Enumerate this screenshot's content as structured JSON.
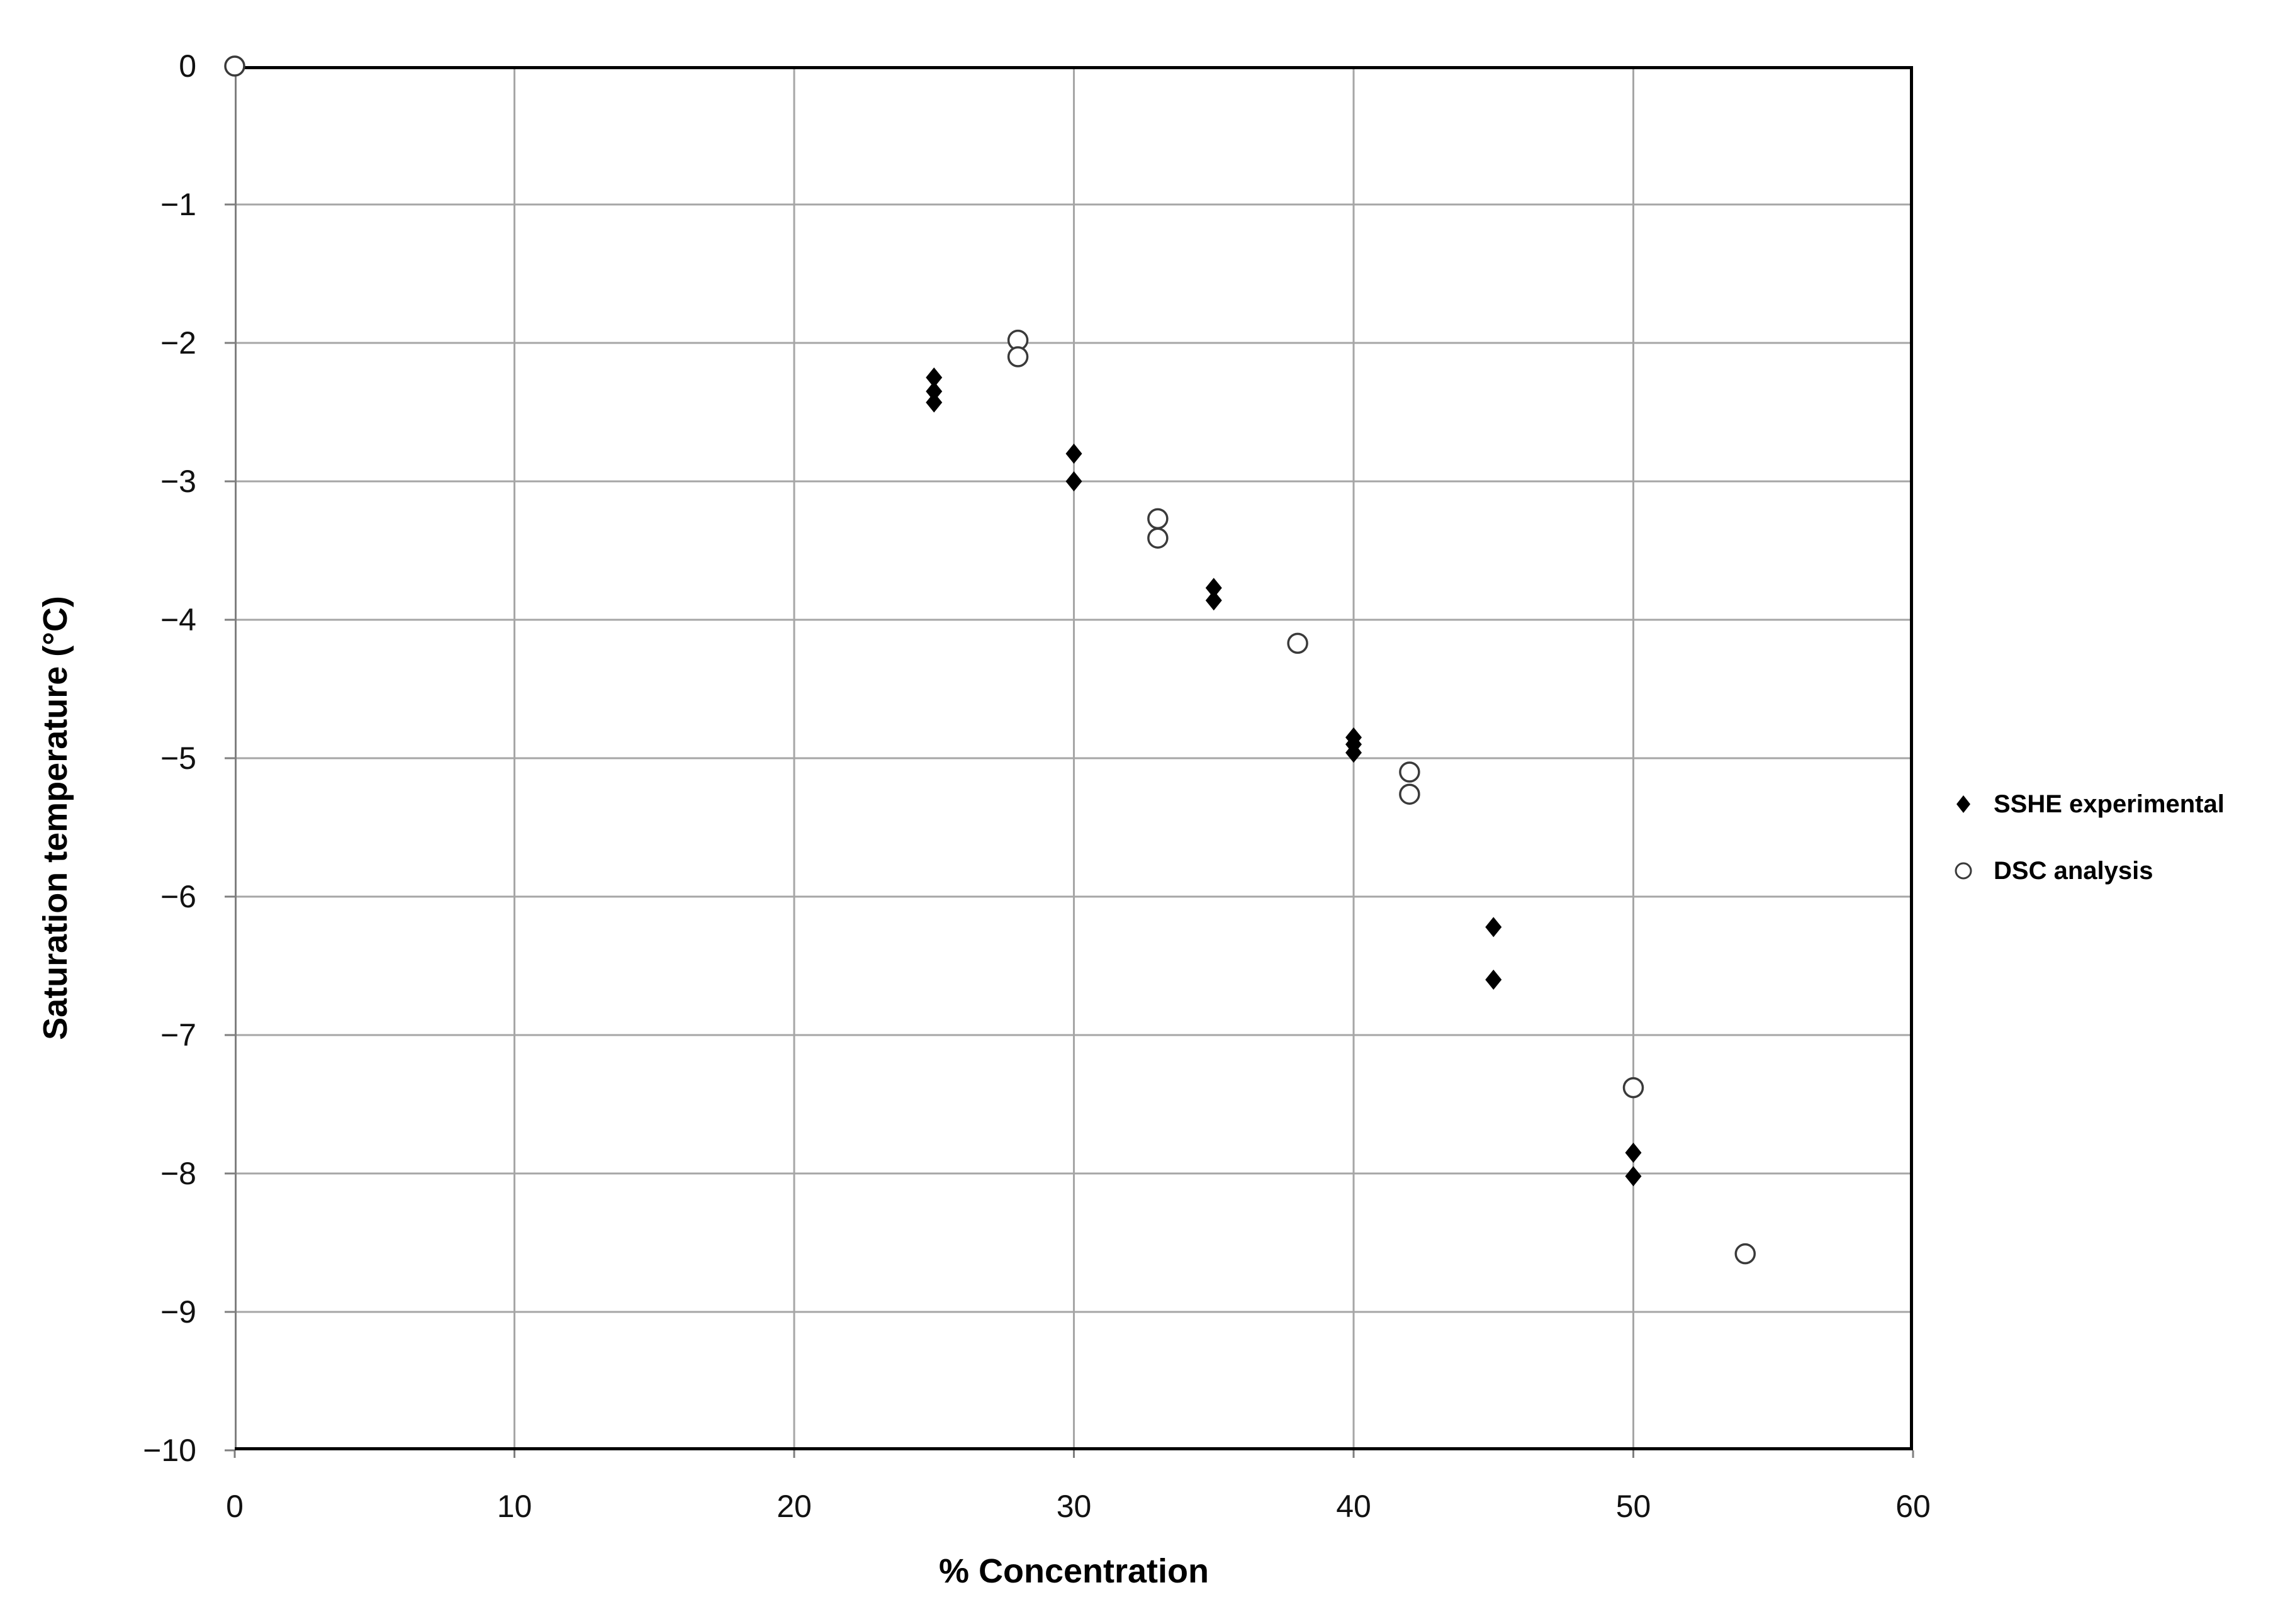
{
  "chart_data": {
    "type": "scatter",
    "title": "",
    "xlabel": "% Concentration",
    "ylabel": "Saturation temperature (°C)",
    "xlim": [
      0,
      60
    ],
    "ylim": [
      -10,
      0
    ],
    "grid": true,
    "legend_position": "right-middle",
    "x_ticks": [
      {
        "value": 0,
        "label": "0"
      },
      {
        "value": 10,
        "label": "10"
      },
      {
        "value": 20,
        "label": "20"
      },
      {
        "value": 30,
        "label": "30"
      },
      {
        "value": 40,
        "label": "40"
      },
      {
        "value": 50,
        "label": "50"
      },
      {
        "value": 60,
        "label": "60"
      }
    ],
    "y_ticks": [
      {
        "value": 0,
        "label": "0"
      },
      {
        "value": -1,
        "label": "−1"
      },
      {
        "value": -2,
        "label": "−2"
      },
      {
        "value": -3,
        "label": "−3"
      },
      {
        "value": -4,
        "label": "−4"
      },
      {
        "value": -5,
        "label": "−5"
      },
      {
        "value": -6,
        "label": "−6"
      },
      {
        "value": -7,
        "label": "−7"
      },
      {
        "value": -8,
        "label": "−8"
      },
      {
        "value": -9,
        "label": "−9"
      },
      {
        "value": -10,
        "label": "−10"
      }
    ],
    "series": [
      {
        "name": "SSHE experimental",
        "marker": "filled-diamond",
        "color": "#000000",
        "points": [
          [
            25,
            -2.25
          ],
          [
            25,
            -2.35
          ],
          [
            25,
            -2.43
          ],
          [
            30,
            -2.8
          ],
          [
            30,
            -3.0
          ],
          [
            35,
            -3.77
          ],
          [
            35,
            -3.86
          ],
          [
            40,
            -4.85
          ],
          [
            40,
            -4.9
          ],
          [
            40,
            -4.96
          ],
          [
            45,
            -6.22
          ],
          [
            45,
            -6.6
          ],
          [
            50,
            -7.85
          ],
          [
            50,
            -8.02
          ]
        ]
      },
      {
        "name": "DSC analysis",
        "marker": "open-circle",
        "color": "#000000",
        "points": [
          [
            0,
            0
          ],
          [
            28,
            -1.98
          ],
          [
            28,
            -2.1
          ],
          [
            33,
            -3.27
          ],
          [
            33,
            -3.41
          ],
          [
            38,
            -4.17
          ],
          [
            42,
            -5.1
          ],
          [
            42,
            -5.26
          ],
          [
            50,
            -7.38
          ],
          [
            54,
            -8.58
          ]
        ]
      }
    ],
    "colors": {
      "gridline": "#a6a6a6",
      "axis_border": "#000000",
      "axis_left": "#7f7f7f",
      "tick": "#7f7f7f",
      "marker_fill": "#000000",
      "circle_stroke": "#3a3a3a",
      "background": "#ffffff"
    }
  }
}
